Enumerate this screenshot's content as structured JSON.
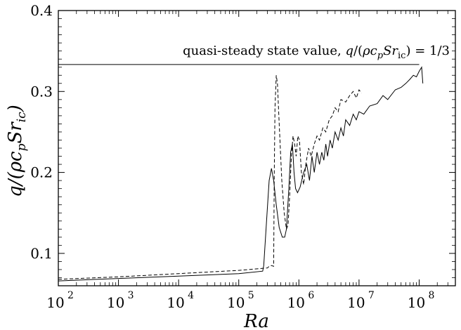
{
  "chart_data": {
    "type": "line",
    "xscale": "log",
    "xlim": [
      100,
      400000000
    ],
    "ylim": [
      0.06,
      0.4
    ],
    "x_ticks": [
      {
        "base": "10",
        "exp": "2",
        "value": 100
      },
      {
        "base": "10",
        "exp": "3",
        "value": 1000
      },
      {
        "base": "10",
        "exp": "4",
        "value": 10000
      },
      {
        "base": "10",
        "exp": "5",
        "value": 100000
      },
      {
        "base": "10",
        "exp": "6",
        "value": 1000000
      },
      {
        "base": "10",
        "exp": "7",
        "value": 10000000
      },
      {
        "base": "10",
        "exp": "8",
        "value": 100000000
      }
    ],
    "y_ticks": [
      {
        "label": "0.1",
        "value": 0.1
      },
      {
        "label": "0.2",
        "value": 0.2
      },
      {
        "label": "0.3",
        "value": 0.3
      },
      {
        "label": "0.4",
        "value": 0.4
      }
    ],
    "xlabel": "Ra",
    "ylabel": "q/(ρc_pSr_ic)",
    "annotation": {
      "text": "quasi-steady state value, q/(ρc_pSr_ic) = 1/3",
      "value": 0.3333
    },
    "series": [
      {
        "style": "solid",
        "x": [
          100,
          1000,
          10000,
          100000,
          250000,
          260000,
          290000,
          320000,
          350000,
          380000,
          420000,
          470000,
          530000,
          580000,
          620000,
          680000,
          730000,
          780000,
          830000,
          880000,
          950000,
          1050000,
          1200000,
          1350000,
          1500000,
          1650000,
          1800000,
          2000000,
          2200000,
          2400000,
          2600000,
          2800000,
          3000000,
          3300000,
          3600000,
          4000000,
          4500000,
          5000000,
          5500000,
          6000000,
          7000000,
          8000000,
          9000000,
          10000000,
          12000000,
          15000000,
          20000000,
          25000000,
          30000000,
          40000000,
          50000000,
          60000000,
          70000000,
          80000000,
          90000000,
          100000000,
          110000000,
          115000000
        ],
        "y": [
          0.066,
          0.069,
          0.072,
          0.075,
          0.078,
          0.085,
          0.14,
          0.19,
          0.205,
          0.19,
          0.16,
          0.132,
          0.12,
          0.12,
          0.13,
          0.18,
          0.225,
          0.235,
          0.2,
          0.18,
          0.175,
          0.182,
          0.2,
          0.21,
          0.19,
          0.22,
          0.2,
          0.225,
          0.21,
          0.225,
          0.215,
          0.235,
          0.22,
          0.24,
          0.23,
          0.25,
          0.24,
          0.255,
          0.245,
          0.265,
          0.258,
          0.272,
          0.265,
          0.275,
          0.272,
          0.282,
          0.285,
          0.295,
          0.29,
          0.302,
          0.305,
          0.31,
          0.315,
          0.32,
          0.318,
          0.325,
          0.33,
          0.31
        ]
      },
      {
        "style": "dashed",
        "x": [
          100,
          1000,
          10000,
          100000,
          300000,
          320000,
          350000,
          380000,
          390000,
          400000,
          420000,
          440000,
          470000,
          520000,
          570000,
          620000,
          660000,
          700000,
          750000,
          800000,
          850000,
          900000,
          960000,
          1020000,
          1100000,
          1200000,
          1300000,
          1450000,
          1600000,
          1800000,
          2000000,
          2200000,
          2500000,
          2800000,
          3200000,
          3600000,
          4000000,
          4500000,
          5000000,
          6000000,
          7000000,
          8000000,
          9000000,
          10000000,
          11000000
        ],
        "y": [
          0.068,
          0.071,
          0.075,
          0.079,
          0.082,
          0.084,
          0.085,
          0.084,
          0.2,
          0.28,
          0.32,
          0.31,
          0.26,
          0.19,
          0.15,
          0.13,
          0.135,
          0.17,
          0.22,
          0.245,
          0.235,
          0.22,
          0.245,
          0.24,
          0.2,
          0.185,
          0.21,
          0.23,
          0.22,
          0.235,
          0.245,
          0.24,
          0.255,
          0.25,
          0.265,
          0.27,
          0.28,
          0.275,
          0.29,
          0.287,
          0.295,
          0.3,
          0.292,
          0.302,
          0.298
        ]
      },
      {
        "style": "solid",
        "x": [
          100,
          100000000
        ],
        "y": [
          0.3333,
          0.3333
        ]
      }
    ]
  }
}
